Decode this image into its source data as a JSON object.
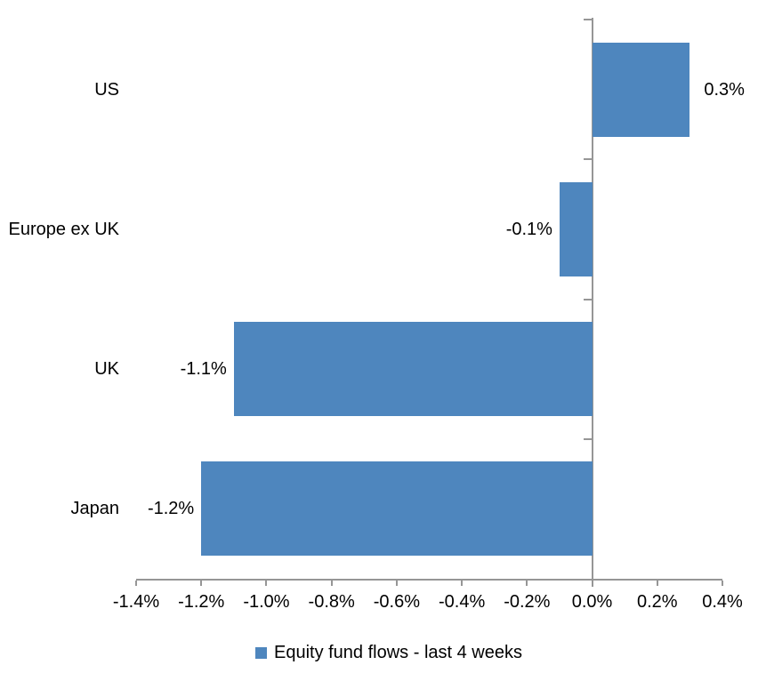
{
  "chart_data": {
    "type": "bar",
    "orientation": "horizontal",
    "title": "",
    "categories": [
      "US",
      "Europe ex UK",
      "UK",
      "Japan"
    ],
    "series": [
      {
        "name": "Equity fund flows - last 4 weeks",
        "values": [
          0.3,
          -0.1,
          -1.1,
          -1.2
        ],
        "data_labels": [
          "0.3%",
          "-0.1%",
          "-1.1%",
          "-1.2%"
        ]
      }
    ],
    "xlabel": "",
    "ylabel": "",
    "xlim": [
      -1.4,
      0.4
    ],
    "x_tick_step": 0.2,
    "x_tick_labels": [
      "-1.4%",
      "-1.2%",
      "-1.0%",
      "-0.8%",
      "-0.6%",
      "-0.4%",
      "-0.2%",
      "0.0%",
      "0.2%",
      "0.4%"
    ],
    "grid": false,
    "legend_position": "bottom-center",
    "colors": {
      "bar": "#4e86be",
      "axis": "#969696",
      "text": "#000000",
      "background": "#ffffff"
    },
    "legend": {
      "label": "Equity fund flows - last 4 weeks",
      "swatch_color": "#4e86be"
    }
  }
}
